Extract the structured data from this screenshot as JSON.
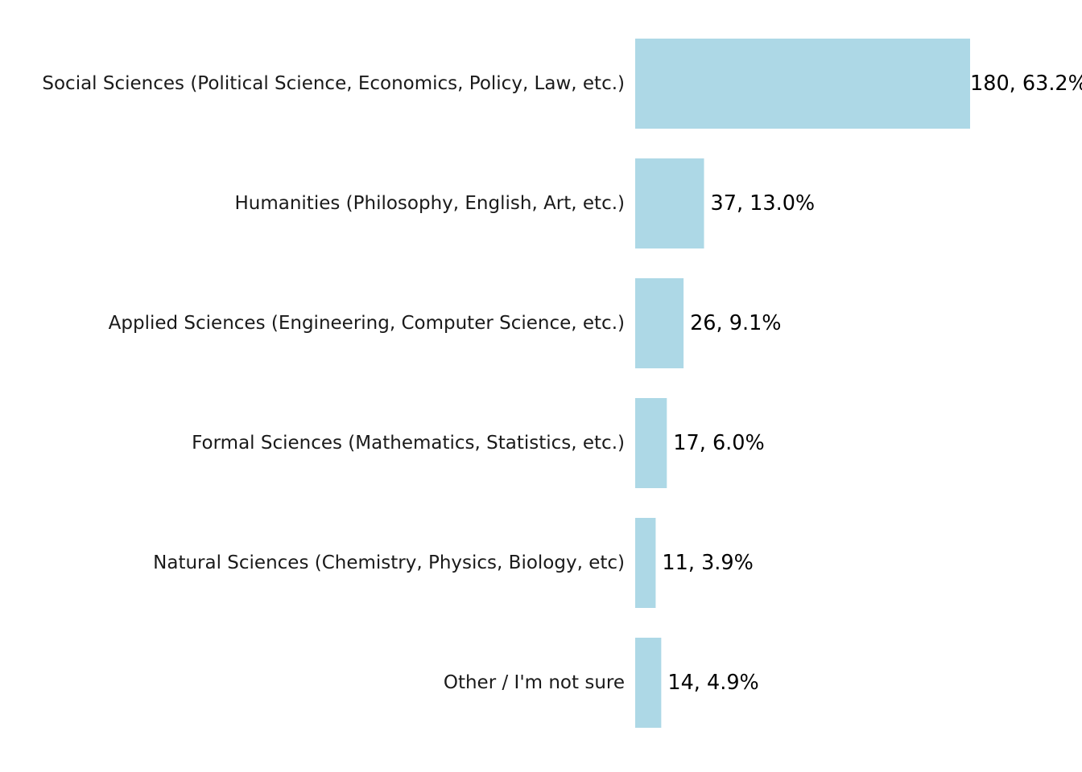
{
  "chart_data": {
    "type": "bar",
    "orientation": "horizontal",
    "categories": [
      "Social Sciences (Political Science, Economics, Policy, Law, etc.)",
      "Humanities (Philosophy, English, Art, etc.)",
      "Applied Sciences (Engineering, Computer Science, etc.)",
      "Formal Sciences (Mathematics, Statistics, etc.)",
      "Natural Sciences (Chemistry, Physics, Biology, etc)",
      "Other / I'm not sure"
    ],
    "values": [
      180,
      37,
      26,
      17,
      11,
      14
    ],
    "data_labels": [
      "180, 63.2%",
      "37, 13.0%",
      "26, 9.1%",
      "17, 6.0%",
      "11, 3.9%",
      "14, 4.9%"
    ],
    "xlim": [
      0,
      180
    ],
    "grid": false,
    "axes_visible": false,
    "bar_color": "#add8e6"
  }
}
